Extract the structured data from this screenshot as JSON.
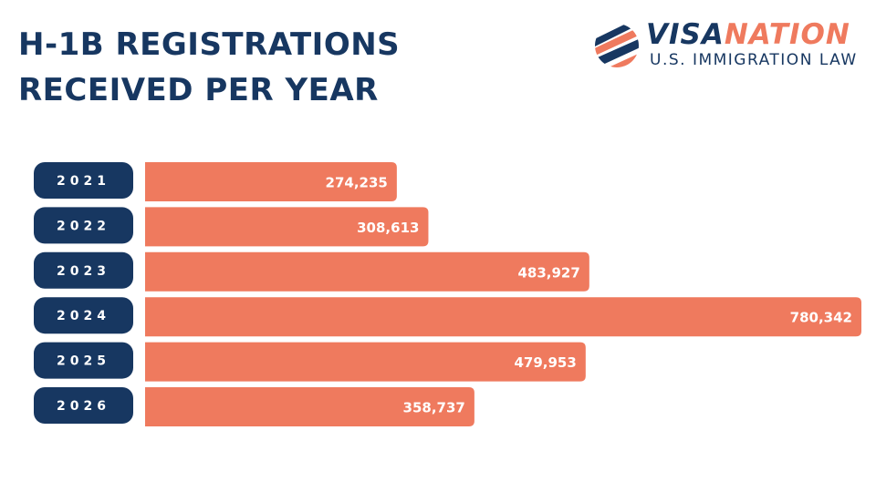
{
  "title_line1": "H-1B REGISTRATIONS",
  "title_line2": "RECEIVED PER YEAR",
  "logo": {
    "word_part1": "VISA",
    "word_part2": "NATION",
    "subtitle": "U.S. IMMIGRATION LAW"
  },
  "colors": {
    "navy": "#173761",
    "coral": "#ef7a5e",
    "white": "#ffffff"
  },
  "chart_data": {
    "type": "bar",
    "orientation": "horizontal",
    "title": "H-1B REGISTRATIONS RECEIVED PER YEAR",
    "categories": [
      "2021",
      "2022",
      "2023",
      "2024",
      "2025",
      "2026"
    ],
    "values": [
      274235,
      308613,
      483927,
      780342,
      479953,
      358737
    ],
    "labels": [
      "274,235",
      "308,613",
      "483,927",
      "780,342",
      "479,953",
      "358,737"
    ],
    "xlim": [
      0,
      780342
    ],
    "grid": false,
    "legend": "none"
  }
}
